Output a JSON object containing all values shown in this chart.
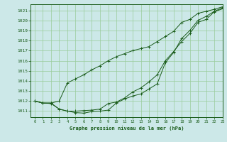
{
  "background_color": "#cce8e8",
  "grid_color": "#99cc99",
  "line_color": "#1a5c1a",
  "title": "Graphe pression niveau de la mer (hPa)",
  "xlim": [
    -0.5,
    23
  ],
  "ylim": [
    1010.4,
    1021.6
  ],
  "yticks": [
    1011,
    1012,
    1013,
    1014,
    1015,
    1016,
    1017,
    1018,
    1019,
    1020,
    1021
  ],
  "xticks": [
    0,
    1,
    2,
    3,
    4,
    5,
    6,
    7,
    8,
    9,
    10,
    11,
    12,
    13,
    14,
    15,
    16,
    17,
    18,
    19,
    20,
    21,
    22,
    23
  ],
  "line1_x": [
    0,
    1,
    2,
    3,
    4,
    5,
    6,
    7,
    8,
    9,
    10,
    11,
    12,
    13,
    14,
    15,
    16,
    17,
    18,
    19,
    20,
    21,
    22,
    23
  ],
  "line1_y": [
    1012.0,
    1011.8,
    1011.8,
    1011.2,
    1011.0,
    1010.85,
    1010.8,
    1010.95,
    1011.0,
    1011.1,
    1011.8,
    1012.2,
    1012.5,
    1012.7,
    1013.2,
    1013.7,
    1015.8,
    1016.8,
    1018.2,
    1019.0,
    1020.0,
    1020.4,
    1020.9,
    1021.25
  ],
  "line2_x": [
    0,
    1,
    2,
    3,
    4,
    5,
    6,
    7,
    8,
    9,
    10,
    11,
    12,
    13,
    14,
    15,
    16,
    17,
    18,
    19,
    20,
    21,
    22,
    23
  ],
  "line2_y": [
    1012.0,
    1011.8,
    1011.75,
    1011.2,
    1011.0,
    1011.0,
    1011.05,
    1011.1,
    1011.2,
    1011.75,
    1011.9,
    1012.3,
    1012.9,
    1013.3,
    1013.9,
    1014.6,
    1016.0,
    1016.9,
    1017.9,
    1018.7,
    1019.8,
    1020.1,
    1020.85,
    1021.15
  ],
  "line3_x": [
    0,
    1,
    2,
    3,
    4,
    5,
    6,
    7,
    8,
    9,
    10,
    11,
    12,
    13,
    14,
    15,
    16,
    17,
    18,
    19,
    20,
    21,
    22,
    23
  ],
  "line3_y": [
    1012.0,
    1011.8,
    1011.8,
    1012.0,
    1013.8,
    1014.2,
    1014.6,
    1015.1,
    1015.5,
    1016.0,
    1016.4,
    1016.7,
    1017.0,
    1017.2,
    1017.4,
    1017.9,
    1018.4,
    1018.9,
    1019.8,
    1020.1,
    1020.7,
    1020.9,
    1021.1,
    1021.35
  ]
}
